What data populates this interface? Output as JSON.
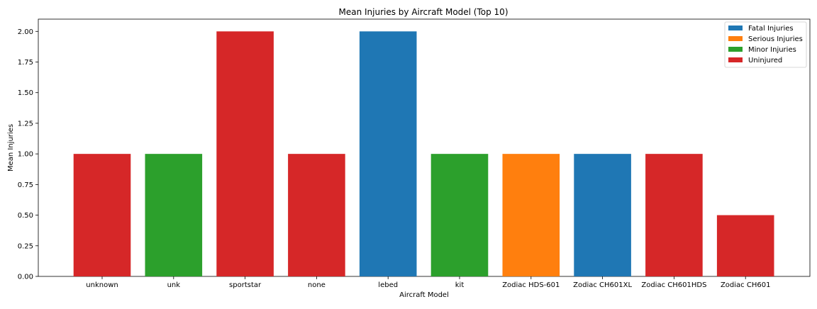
{
  "chart_data": {
    "type": "bar",
    "title": "Mean Injuries by Aircraft Model (Top 10)",
    "xlabel": "Aircraft Model",
    "ylabel": "Mean Injuries",
    "ylim": [
      0,
      2.1
    ],
    "yticks": [
      "0.00",
      "0.25",
      "0.50",
      "0.75",
      "1.00",
      "1.25",
      "1.50",
      "1.75",
      "2.00"
    ],
    "categories": [
      "unknown",
      "unk",
      "sportstar",
      "none",
      "lebed",
      "kit",
      "Zodiac HDS-601",
      "Zodiac CH601XL",
      "Zodiac CH601HDS",
      "Zodiac CH601"
    ],
    "values": [
      1.0,
      1.0,
      2.0,
      1.0,
      2.0,
      1.0,
      1.0,
      1.0,
      1.0,
      0.5
    ],
    "bar_series": [
      "Uninjured",
      "Minor Injuries",
      "Uninjured",
      "Uninjured",
      "Fatal Injuries",
      "Minor Injuries",
      "Serious Injuries",
      "Fatal Injuries",
      "Uninjured",
      "Uninjured"
    ],
    "legend": {
      "position": "top-right",
      "entries": [
        {
          "name": "Fatal Injuries",
          "color": "#1f77b4"
        },
        {
          "name": "Serious Injuries",
          "color": "#ff7f0e"
        },
        {
          "name": "Minor Injuries",
          "color": "#2ca02c"
        },
        {
          "name": "Uninjured",
          "color": "#d62728"
        }
      ]
    },
    "grid": false
  }
}
